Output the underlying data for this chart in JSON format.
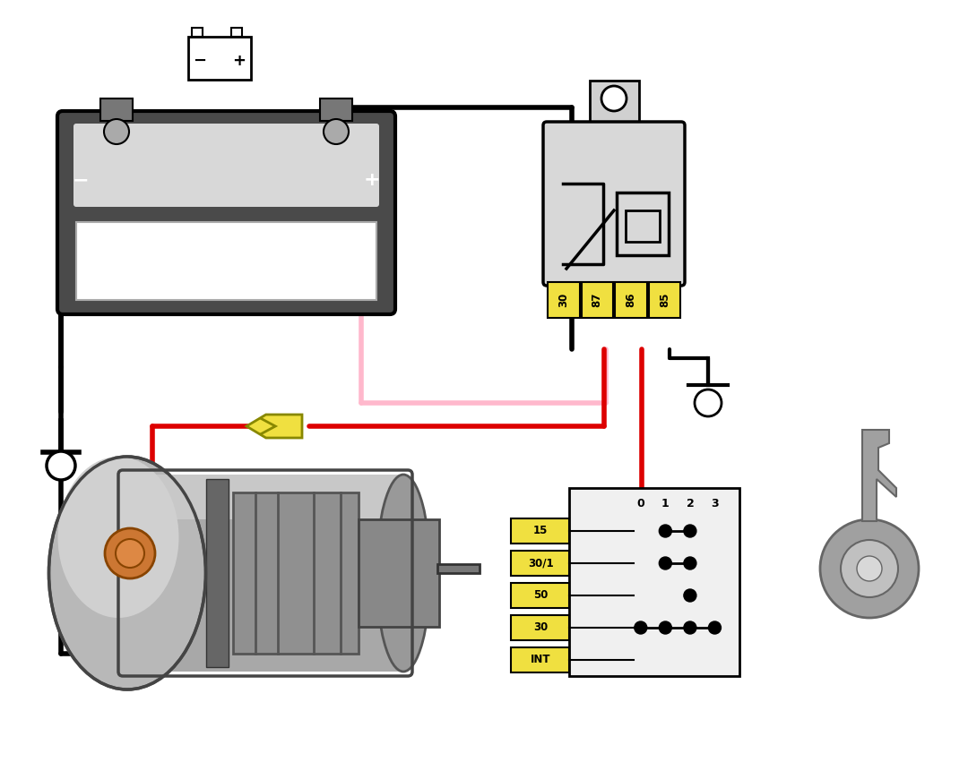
{
  "bg_color": "#ffffff",
  "black": "#000000",
  "red": "#dd0000",
  "pink": "#ffb8cc",
  "yellow": "#f0e040",
  "yellow_edge": "#888800",
  "gray_dark": "#555555",
  "gray_med": "#888888",
  "gray_light": "#cccccc",
  "gray_body": "#aaaaaa",
  "orange": "#cc7733",
  "relay_pins": [
    "30",
    "87",
    "86",
    "85"
  ],
  "ign_pins": [
    "15",
    "30/1",
    "50",
    "30",
    "INT"
  ],
  "ign_headers": [
    "0",
    "1",
    "2",
    "3"
  ],
  "contact_map": [
    [
      false,
      true,
      true,
      false
    ],
    [
      false,
      true,
      true,
      false
    ],
    [
      false,
      false,
      true,
      false
    ],
    [
      true,
      true,
      true,
      true
    ],
    [
      false,
      false,
      false,
      false
    ]
  ],
  "lw_wire": 4.0,
  "lw_wire_thin": 3.0
}
